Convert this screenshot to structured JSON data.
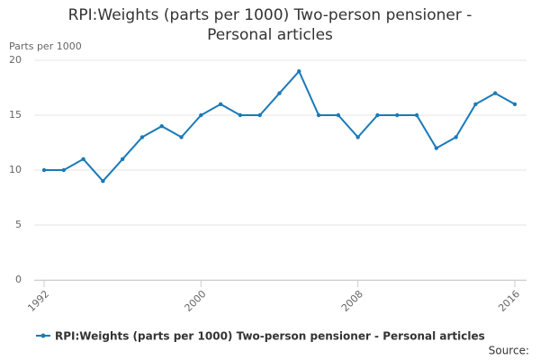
{
  "chart_data": {
    "type": "line",
    "title": "RPI:Weights (parts per 1000) Two-person pensioner - Personal articles",
    "y_label": "Parts per 1000",
    "source": "Source:",
    "x": [
      1992,
      1993,
      1994,
      1995,
      1996,
      1997,
      1998,
      1999,
      2000,
      2001,
      2002,
      2003,
      2004,
      2005,
      2006,
      2007,
      2008,
      2009,
      2010,
      2011,
      2012,
      2013,
      2014,
      2015,
      2016
    ],
    "series": [
      {
        "name": "RPI:Weights (parts per 1000) Two-person pensioner - Personal articles",
        "color": "#1a7ab8",
        "values": [
          10,
          10,
          11,
          9,
          11,
          13,
          14,
          13,
          15,
          16,
          15,
          15,
          17,
          19,
          15,
          15,
          13,
          15,
          15,
          15,
          12,
          13,
          16,
          17,
          16
        ]
      }
    ],
    "xlim": [
      1992,
      2016
    ],
    "xticks": [
      1992,
      2000,
      2008,
      2016
    ],
    "ylim": [
      0,
      20
    ],
    "yticks": [
      0,
      5,
      10,
      15,
      20
    ],
    "grid": true
  }
}
